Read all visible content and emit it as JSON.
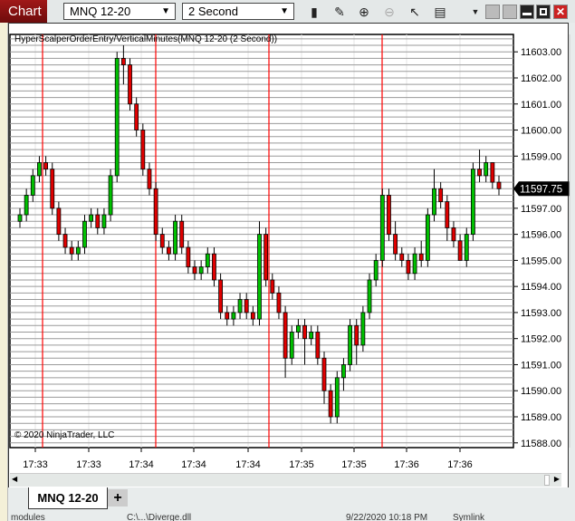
{
  "titlebar": {
    "tab": "Chart",
    "instrument": "MNQ 12-20",
    "interval": "2 Second",
    "toolbar_icons": [
      "bars-type-icon",
      "drawing-tool-icon",
      "zoom-in-icon",
      "zoom-out-icon",
      "pointer-icon",
      "properties-icon",
      "dropdown-arrow-icon"
    ],
    "window_buttons": [
      "minimize-icon",
      "maximize-icon",
      "close-icon"
    ]
  },
  "chart": {
    "indicator_label": "HyperScalperOrderEntry/VerticalMinutes(MNQ 12-20 (2 Second))",
    "copyright": "© 2020 NinjaTrader, LLC",
    "price_labels": [
      "11603.00",
      "11602.00",
      "11601.00",
      "11600.00",
      "11599.00",
      "11597.00",
      "11596.00",
      "11595.00",
      "11594.00",
      "11593.00",
      "11592.00",
      "11591.00",
      "11590.00",
      "11589.00",
      "11588.00"
    ],
    "current_price": "11597.75",
    "time_labels": [
      "17:33",
      "17:33",
      "17:34",
      "17:34",
      "17:34",
      "17:35",
      "17:35",
      "17:36",
      "17:36"
    ],
    "colors": {
      "up": "#00c000",
      "down": "#e00000",
      "minute_line": "#ff0000",
      "grid": "#9a9a9a"
    }
  },
  "chart_data": {
    "type": "candlestick",
    "ylim": [
      11588,
      11603.5
    ],
    "candles_ohlc": [
      [
        11596.5,
        11597,
        11596.25,
        11596.75
      ],
      [
        11596.75,
        11597.75,
        11596.5,
        11597.5
      ],
      [
        11597.5,
        11598.5,
        11597.25,
        11598.25
      ],
      [
        11598.25,
        11599,
        11598,
        11598.75
      ],
      [
        11598.75,
        11599,
        11598.25,
        11598.5
      ],
      [
        11598.5,
        11598.75,
        11596.75,
        11597
      ],
      [
        11597,
        11597.25,
        11595.75,
        11596
      ],
      [
        11596,
        11596.25,
        11595.25,
        11595.5
      ],
      [
        11595.5,
        11595.75,
        11595,
        11595.25
      ],
      [
        11595.25,
        11595.75,
        11595,
        11595.5
      ],
      [
        11595.5,
        11596.75,
        11595.25,
        11596.5
      ],
      [
        11596.5,
        11597,
        11596.25,
        11596.75
      ],
      [
        11596.75,
        11597,
        11596,
        11596.25
      ],
      [
        11596.25,
        11597,
        11596,
        11596.75
      ],
      [
        11596.75,
        11598.5,
        11596.5,
        11598.25
      ],
      [
        11598.25,
        11603,
        11598,
        11602.75
      ],
      [
        11602.75,
        11603.25,
        11601.75,
        11602.5
      ],
      [
        11602.5,
        11602.75,
        11600.75,
        11601
      ],
      [
        11601,
        11601.25,
        11599.75,
        11600
      ],
      [
        11600,
        11600.25,
        11598.25,
        11598.5
      ],
      [
        11598.5,
        11598.75,
        11597.5,
        11597.75
      ],
      [
        11597.75,
        11598,
        11595.75,
        11596
      ],
      [
        11596,
        11596.25,
        11595.25,
        11595.5
      ],
      [
        11595.5,
        11595.75,
        11595,
        11595.25
      ],
      [
        11595.25,
        11596.75,
        11595,
        11596.5
      ],
      [
        11596.5,
        11596.75,
        11595.25,
        11595.5
      ],
      [
        11595.5,
        11595.75,
        11594.5,
        11594.75
      ],
      [
        11594.75,
        11595,
        11594.25,
        11594.5
      ],
      [
        11594.5,
        11595,
        11594.25,
        11594.75
      ],
      [
        11594.75,
        11595.5,
        11594.5,
        11595.25
      ],
      [
        11595.25,
        11595.5,
        11594,
        11594.25
      ],
      [
        11594.25,
        11594.5,
        11592.75,
        11593
      ],
      [
        11593,
        11593.25,
        11592.5,
        11592.75
      ],
      [
        11592.75,
        11593.25,
        11592.5,
        11593
      ],
      [
        11593,
        11593.75,
        11592.75,
        11593.5
      ],
      [
        11593.5,
        11593.75,
        11592.75,
        11593
      ],
      [
        11593,
        11593.25,
        11592.5,
        11592.75
      ],
      [
        11592.75,
        11596.5,
        11592.5,
        11596
      ],
      [
        11596,
        11596.25,
        11594,
        11594.25
      ],
      [
        11594.25,
        11594.5,
        11593.5,
        11593.75
      ],
      [
        11593.75,
        11594,
        11592.75,
        11593
      ],
      [
        11593,
        11593.25,
        11590.5,
        11591.25
      ],
      [
        11591.25,
        11592.5,
        11591,
        11592.25
      ],
      [
        11592.25,
        11592.75,
        11592,
        11592.5
      ],
      [
        11592.5,
        11592.75,
        11591,
        11592
      ],
      [
        11592,
        11592.5,
        11591.75,
        11592.25
      ],
      [
        11592.25,
        11592.5,
        11591,
        11591.25
      ],
      [
        11591.25,
        11591.5,
        11589.5,
        11590
      ],
      [
        11590,
        11590.25,
        11588.75,
        11589
      ],
      [
        11589,
        11590.75,
        11588.75,
        11590.5
      ],
      [
        11590.5,
        11591.25,
        11590,
        11591
      ],
      [
        11591,
        11592.75,
        11590.75,
        11592.5
      ],
      [
        11592.5,
        11592.75,
        11591,
        11591.75
      ],
      [
        11591.75,
        11593.25,
        11591.5,
        11593
      ],
      [
        11593,
        11594.5,
        11592.75,
        11594.25
      ],
      [
        11594.25,
        11595.25,
        11594,
        11595
      ],
      [
        11595,
        11597.75,
        11594.75,
        11597.5
      ],
      [
        11597.5,
        11597.75,
        11595.75,
        11596
      ],
      [
        11596,
        11596.5,
        11595,
        11595.25
      ],
      [
        11595.25,
        11595.5,
        11594.75,
        11595
      ],
      [
        11595,
        11595.25,
        11594.25,
        11594.5
      ],
      [
        11594.5,
        11595.5,
        11594.25,
        11595.25
      ],
      [
        11595.25,
        11595.75,
        11594.75,
        11595
      ],
      [
        11595,
        11597,
        11594.75,
        11596.75
      ],
      [
        11596.75,
        11598.5,
        11596.5,
        11597.75
      ],
      [
        11597.75,
        11598,
        11597,
        11597.25
      ],
      [
        11597.25,
        11597.5,
        11595.75,
        11596.25
      ],
      [
        11596.25,
        11596.5,
        11595.5,
        11595.75
      ],
      [
        11595.75,
        11596,
        11595,
        11595
      ],
      [
        11595,
        11596.25,
        11594.75,
        11596
      ],
      [
        11596,
        11598.75,
        11595.75,
        11598.5
      ],
      [
        11598.5,
        11599.25,
        11598,
        11598.25
      ],
      [
        11598.25,
        11599,
        11598,
        11598.75
      ],
      [
        11598.75,
        11598.75,
        11597.75,
        11598
      ],
      [
        11598,
        11598.25,
        11597.5,
        11597.75
      ]
    ],
    "vertical_minute_lines": 4
  },
  "tabs": {
    "active": "MNQ 12-20",
    "add": "+"
  },
  "behind": {
    "text1": "modules",
    "text2": "C:\\...\\Diverge.dll",
    "text3": "9/22/2020 10:18 PM",
    "text4": "Symlink"
  }
}
